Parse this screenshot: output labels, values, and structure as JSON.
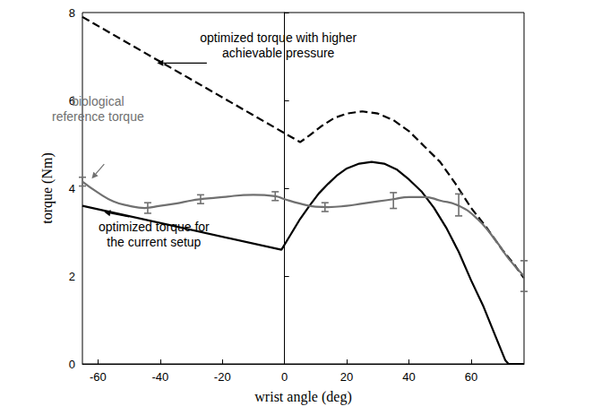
{
  "chart_data": {
    "type": "line",
    "x_label": "wrist angle (deg)",
    "y_label": "torque (Nm)",
    "xlim": [
      -65,
      77
    ],
    "xticks": [
      -60,
      -40,
      -20,
      0,
      20,
      40,
      60
    ],
    "ylim": [
      0,
      8
    ],
    "yticks": [
      0,
      2,
      4,
      6,
      8
    ],
    "grid": false,
    "series": [
      {
        "color": "#000000",
        "line_style": "dashed",
        "x": [
          -65,
          5,
          8,
          12,
          16,
          20,
          25,
          30,
          35,
          40,
          45,
          50,
          55,
          60,
          65,
          70,
          74,
          77
        ],
        "values": [
          7.9,
          5.05,
          5.2,
          5.42,
          5.6,
          5.7,
          5.75,
          5.7,
          5.55,
          5.3,
          4.95,
          4.6,
          4.1,
          3.55,
          3.1,
          2.6,
          2.25,
          1.95
        ]
      },
      {
        "color": "#000000",
        "line_style": "solid",
        "x": [
          -65,
          -1,
          2,
          5,
          8,
          11,
          14,
          17,
          20,
          24,
          28,
          32,
          36,
          40,
          44,
          48,
          52,
          56,
          60,
          64,
          68,
          71,
          72,
          77
        ],
        "values": [
          3.6,
          2.6,
          2.95,
          3.3,
          3.6,
          3.88,
          4.1,
          4.3,
          4.45,
          4.56,
          4.6,
          4.56,
          4.43,
          4.2,
          3.93,
          3.56,
          3.1,
          2.55,
          1.9,
          1.3,
          0.6,
          0.08,
          0,
          0
        ]
      },
      {
        "color": "#707070",
        "line_style": "solid",
        "smooth": true,
        "x": [
          -65,
          -60,
          -55,
          -50,
          -45,
          -40,
          -35,
          -30,
          -27,
          -20,
          -10,
          -3,
          0,
          5,
          10,
          14,
          20,
          25,
          30,
          35,
          40,
          45,
          50,
          56,
          62,
          68,
          72,
          77
        ],
        "values": [
          4.15,
          3.9,
          3.7,
          3.6,
          3.55,
          3.6,
          3.65,
          3.72,
          3.75,
          3.8,
          3.85,
          3.82,
          3.75,
          3.65,
          3.58,
          3.57,
          3.6,
          3.65,
          3.7,
          3.75,
          3.8,
          3.8,
          3.72,
          3.6,
          3.3,
          2.8,
          2.4,
          2.0
        ],
        "error_bars": {
          "x": [
            -65,
            -44,
            -27,
            -3,
            13,
            35,
            56,
            77
          ],
          "y": [
            4.15,
            3.55,
            3.75,
            3.82,
            3.57,
            3.72,
            3.62,
            2.0
          ],
          "err": [
            0.1,
            0.12,
            0.1,
            0.1,
            0.1,
            0.18,
            0.25,
            0.35
          ]
        }
      }
    ],
    "annotations": [
      {
        "text": [
          "optimized torque with higher",
          "achievable pressure"
        ],
        "color": "#000000",
        "x": -2,
        "y": 7.25,
        "arrow_from": [
          -25,
          6.85
        ],
        "arrow_to": [
          -41,
          6.85
        ]
      },
      {
        "text": [
          "biological",
          "reference torque"
        ],
        "color": "#707070",
        "x": -60,
        "y": 5.8,
        "arrow_from": [
          -58,
          4.55
        ],
        "arrow_to": [
          -62,
          4.22
        ]
      },
      {
        "text": [
          "optimized torque for",
          "the current setup"
        ],
        "color": "#000000",
        "x": -42,
        "y": 2.95,
        "arrow_from": [
          -50,
          3.35
        ],
        "arrow_to": [
          -58,
          3.46
        ]
      }
    ]
  }
}
